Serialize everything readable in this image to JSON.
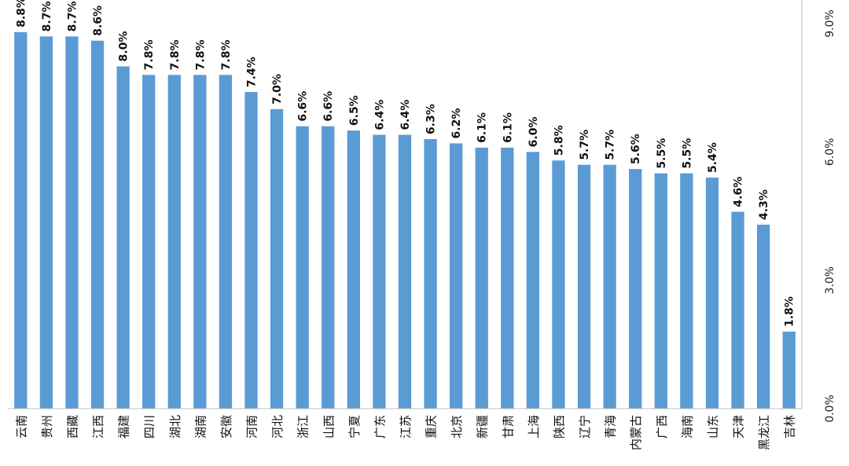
{
  "chart_data": {
    "type": "bar",
    "title": "",
    "xlabel": "",
    "ylabel": "",
    "ylim": [
      0,
      9.0
    ],
    "y_ticks": [
      "0.0%",
      "3.0%",
      "6.0%",
      "9.0%"
    ],
    "y_tick_values": [
      0,
      3,
      6,
      9
    ],
    "y_axis_position": "right",
    "grid": false,
    "bar_color": "#5B9BD5",
    "categories": [
      "云南",
      "贵州",
      "西藏",
      "江西",
      "福建",
      "四川",
      "湖北",
      "湖南",
      "安徽",
      "河南",
      "河北",
      "浙江",
      "山西",
      "宁夏",
      "广东",
      "江苏",
      "重庆",
      "北京",
      "新疆",
      "甘肃",
      "上海",
      "陕西",
      "辽宁",
      "青海",
      "内蒙古",
      "广西",
      "海南",
      "山东",
      "天津",
      "黑龙江",
      "吉林"
    ],
    "values": [
      8.8,
      8.7,
      8.7,
      8.6,
      8.0,
      7.8,
      7.8,
      7.8,
      7.8,
      7.4,
      7.0,
      6.6,
      6.6,
      6.5,
      6.4,
      6.4,
      6.3,
      6.2,
      6.1,
      6.1,
      6.0,
      5.8,
      5.7,
      5.7,
      5.6,
      5.5,
      5.5,
      5.4,
      4.6,
      4.3,
      1.8
    ],
    "data_labels": [
      "8.8%",
      "8.7%",
      "8.7%",
      "8.6%",
      "8.0%",
      "7.8%",
      "7.8%",
      "7.8%",
      "7.8%",
      "7.4%",
      "7.0%",
      "6.6%",
      "6.6%",
      "6.5%",
      "6.4%",
      "6.4%",
      "6.3%",
      "6.2%",
      "6.1%",
      "6.1%",
      "6.0%",
      "5.8%",
      "5.7%",
      "5.7%",
      "5.6%",
      "5.5%",
      "5.5%",
      "5.4%",
      "4.6%",
      "4.3%",
      "1.8%"
    ]
  }
}
